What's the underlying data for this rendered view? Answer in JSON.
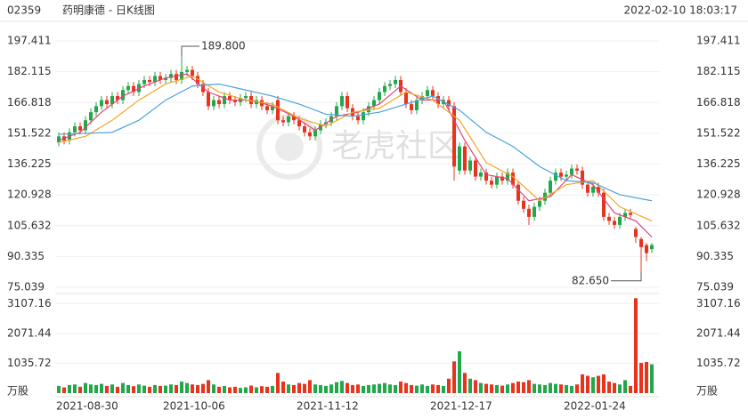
{
  "chart_data": {
    "type": "candlestick",
    "code": "02359",
    "title": "药明康德 - 日K线图",
    "timestamp": "2022-02-10 18:03:17",
    "watermark": "老虎社区",
    "up_color": "#22a84a",
    "down_color": "#e8341c",
    "grid": true,
    "categories": [
      "2021-08-30",
      null,
      null,
      null,
      null,
      null,
      null,
      null,
      null,
      null,
      null,
      null,
      null,
      null,
      null,
      null,
      null,
      null,
      null,
      null,
      "2021-10-06",
      null,
      null,
      null,
      null,
      null,
      null,
      null,
      null,
      null,
      null,
      null,
      null,
      null,
      null,
      null,
      null,
      null,
      null,
      null,
      null,
      null,
      null,
      null,
      null,
      "2021-11-12",
      null,
      null,
      null,
      null,
      null,
      null,
      null,
      null,
      null,
      null,
      null,
      null,
      null,
      null,
      null,
      null,
      null,
      null,
      null,
      null,
      null,
      null,
      null,
      null,
      "2021-12-17",
      null,
      null,
      null,
      null,
      null,
      null,
      null,
      null,
      null,
      null,
      null,
      null,
      null,
      null,
      null,
      null,
      null,
      null,
      null,
      null,
      null,
      null,
      null,
      null,
      "2022-01-24",
      null,
      null,
      null,
      null,
      null,
      null,
      null,
      null,
      null,
      null,
      null,
      null,
      null,
      null,
      null,
      null
    ],
    "open": [
      147,
      150,
      148,
      152,
      155,
      153,
      158,
      162,
      165,
      168,
      166,
      170,
      168,
      173,
      175,
      172,
      176,
      178,
      177,
      180,
      178,
      179,
      181,
      178,
      182,
      183,
      180,
      176,
      172,
      165,
      168,
      166,
      170,
      168,
      167,
      169,
      170,
      166,
      168,
      165,
      163,
      168,
      158,
      157,
      160,
      158,
      155,
      152,
      150,
      153,
      156,
      157,
      160,
      165,
      170,
      164,
      160,
      158,
      162,
      165,
      168,
      172,
      175,
      176,
      178,
      172,
      166,
      163,
      168,
      170,
      173,
      170,
      166,
      168,
      165,
      133,
      145,
      133,
      138,
      130,
      132,
      128,
      126,
      130,
      128,
      132,
      126,
      118,
      114,
      110,
      115,
      118,
      122,
      128,
      132,
      130,
      131,
      134,
      133,
      126,
      122,
      125,
      122,
      110,
      108,
      106,
      110,
      112,
      104,
      99,
      96,
      94
    ],
    "high": [
      152,
      152,
      154,
      157,
      157,
      160,
      164,
      167,
      170,
      170,
      172,
      172,
      175,
      177,
      177,
      178,
      180,
      180,
      182,
      182,
      181,
      183,
      183,
      189.8,
      185,
      185,
      182,
      178,
      174,
      170,
      170,
      172,
      172,
      170,
      171,
      172,
      172,
      170,
      170,
      167,
      167,
      170,
      160,
      162,
      162,
      160,
      157,
      154,
      155,
      158,
      159,
      162,
      167,
      172,
      172,
      166,
      162,
      164,
      167,
      170,
      174,
      177,
      178,
      180,
      180,
      174,
      168,
      170,
      172,
      175,
      175,
      172,
      170,
      170,
      167,
      147,
      147,
      140,
      140,
      134,
      134,
      130,
      132,
      132,
      134,
      134,
      128,
      120,
      116,
      117,
      120,
      124,
      130,
      134,
      134,
      133,
      136,
      136,
      135,
      128,
      127,
      127,
      124,
      112,
      110,
      112,
      114,
      114,
      105,
      100,
      97,
      97
    ],
    "low": [
      145,
      146,
      146,
      150,
      151,
      151,
      156,
      160,
      163,
      164,
      164,
      166,
      166,
      171,
      170,
      170,
      174,
      175,
      175,
      176,
      176,
      177,
      176,
      176,
      180,
      178,
      174,
      170,
      163,
      163,
      164,
      164,
      166,
      165,
      165,
      167,
      164,
      164,
      163,
      161,
      161,
      156,
      155,
      155,
      156,
      153,
      150,
      148,
      148,
      151,
      154,
      155,
      158,
      163,
      162,
      158,
      156,
      156,
      160,
      163,
      166,
      170,
      173,
      174,
      170,
      164,
      161,
      161,
      166,
      168,
      168,
      164,
      164,
      163,
      128,
      131,
      131,
      131,
      128,
      128,
      126,
      124,
      124,
      126,
      126,
      124,
      116,
      112,
      106,
      108,
      113,
      116,
      120,
      126,
      128,
      128,
      129,
      131,
      124,
      120,
      120,
      120,
      108,
      106,
      104,
      104,
      108,
      109,
      97,
      82.65,
      88,
      92
    ],
    "close": [
      150,
      148,
      152,
      155,
      153,
      158,
      162,
      165,
      168,
      166,
      170,
      168,
      173,
      175,
      172,
      176,
      178,
      177,
      180,
      178,
      179,
      181,
      178,
      182,
      183,
      180,
      176,
      172,
      165,
      168,
      166,
      170,
      168,
      167,
      169,
      170,
      166,
      168,
      165,
      163,
      165,
      158,
      157,
      160,
      158,
      155,
      152,
      150,
      153,
      156,
      157,
      160,
      165,
      170,
      164,
      160,
      158,
      162,
      165,
      168,
      172,
      175,
      176,
      178,
      172,
      166,
      163,
      168,
      170,
      173,
      170,
      166,
      168,
      165,
      135,
      145,
      133,
      138,
      130,
      132,
      128,
      126,
      130,
      128,
      132,
      126,
      118,
      114,
      110,
      115,
      118,
      122,
      128,
      132,
      130,
      131,
      134,
      133,
      126,
      122,
      125,
      122,
      110,
      108,
      106,
      110,
      112,
      111,
      100,
      95,
      92,
      96
    ],
    "high_label": "189.800",
    "low_label": "82.650",
    "ylim": [
      75.039,
      197.411
    ],
    "yticks": [
      197.411,
      182.115,
      166.818,
      151.522,
      136.225,
      120.928,
      105.632,
      90.335,
      75.039
    ],
    "lines": [
      {
        "color": "#e0457b",
        "x": [
          0,
          4,
          8,
          12,
          16,
          20,
          24,
          28,
          32,
          36,
          40,
          44,
          48,
          52,
          56,
          60,
          64,
          68,
          72,
          76,
          80,
          84,
          88,
          92,
          96,
          100,
          104,
          108,
          111
        ],
        "values": [
          148,
          152,
          162,
          170,
          175,
          179,
          181,
          172,
          168,
          168,
          165,
          160,
          153,
          160,
          162,
          166,
          175,
          168,
          168,
          148,
          131,
          129,
          118,
          120,
          131,
          126,
          112,
          108,
          100
        ]
      },
      {
        "color": "#f5a623",
        "x": [
          0,
          5,
          10,
          15,
          20,
          25,
          30,
          35,
          40,
          45,
          50,
          55,
          60,
          65,
          70,
          75,
          80,
          85,
          90,
          95,
          100,
          105,
          111
        ],
        "values": [
          147,
          150,
          158,
          168,
          176,
          180,
          172,
          168,
          166,
          159,
          155,
          162,
          164,
          172,
          168,
          158,
          137,
          130,
          118,
          126,
          128,
          115,
          108
        ]
      },
      {
        "color": "#4aa3df",
        "x": [
          0,
          10,
          15,
          20,
          25,
          30,
          35,
          40,
          45,
          50,
          55,
          60,
          65,
          70,
          75,
          80,
          85,
          90,
          95,
          100,
          105,
          111
        ],
        "values": [
          151,
          152,
          158,
          168,
          175,
          176,
          173,
          170,
          166,
          161,
          160,
          162,
          166,
          170,
          163,
          152,
          145,
          135,
          128,
          127,
          121,
          118
        ]
      }
    ],
    "volume": {
      "unit": "万股",
      "ylim": [
        0,
        3300
      ],
      "yticks": [
        3107.16,
        2071.44,
        1035.72
      ],
      "values": [
        250,
        200,
        280,
        300,
        220,
        350,
        300,
        280,
        320,
        250,
        300,
        220,
        350,
        280,
        240,
        300,
        260,
        220,
        280,
        250,
        260,
        300,
        280,
        400,
        350,
        300,
        280,
        320,
        450,
        300,
        220,
        250,
        200,
        220,
        180,
        200,
        260,
        200,
        240,
        220,
        250,
        700,
        400,
        300,
        280,
        350,
        320,
        450,
        300,
        280,
        250,
        300,
        380,
        420,
        350,
        280,
        300,
        250,
        280,
        300,
        320,
        350,
        300,
        280,
        400,
        350,
        280,
        260,
        300,
        250,
        300,
        280,
        250,
        500,
        1100,
        1450,
        700,
        500,
        450,
        350,
        320,
        300,
        280,
        260,
        300,
        350,
        400,
        380,
        450,
        320,
        300,
        280,
        350,
        320,
        300,
        280,
        250,
        300,
        650,
        600,
        550,
        600,
        650,
        400,
        350,
        300,
        450,
        250,
        3290,
        1050,
        1080,
        1000
      ]
    }
  }
}
